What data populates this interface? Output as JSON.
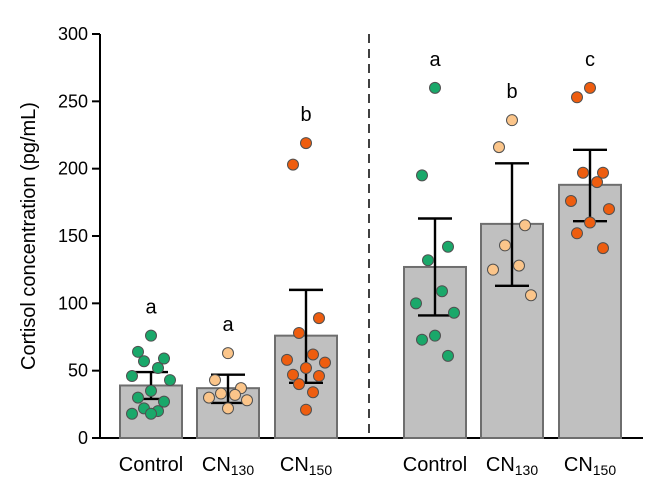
{
  "chart_data": {
    "type": "bar",
    "ylabel": "Cortisol concentration (pg/mL)",
    "ylim": [
      0,
      300
    ],
    "yticks": [
      0,
      50,
      100,
      150,
      200,
      250,
      300
    ],
    "colors": {
      "bar_fill": "#c0c0c0",
      "bar_stroke": "#6e6e6e",
      "control": "#1aa86a",
      "cn130": "#fbc58a",
      "cn150": "#ee5d0f",
      "axis": "#000000"
    },
    "groups": [
      {
        "label": "Control",
        "sub": "",
        "color_key": "control",
        "mean": 39,
        "err_low": 29,
        "err_high": 49,
        "letter": "a",
        "points": [
          76,
          64,
          59,
          57,
          52,
          46,
          43,
          35,
          30,
          27,
          22,
          20,
          18,
          18
        ]
      },
      {
        "label": "CN",
        "sub": "130",
        "color_key": "cn130",
        "mean": 37,
        "err_low": 26,
        "err_high": 47,
        "letter": "a",
        "points": [
          63,
          43,
          37,
          33,
          32,
          30,
          28,
          22
        ]
      },
      {
        "label": "CN",
        "sub": "150",
        "color_key": "cn150",
        "mean": 76,
        "err_low": 41,
        "err_high": 110,
        "letter": "b",
        "points": [
          219,
          203,
          89,
          78,
          62,
          58,
          56,
          52,
          47,
          46,
          40,
          34,
          21
        ]
      },
      {
        "label": "Control",
        "sub": "",
        "color_key": "control",
        "mean": 127,
        "err_low": 91,
        "err_high": 163,
        "letter": "a",
        "points": [
          260,
          195,
          142,
          132,
          109,
          100,
          93,
          76,
          73,
          61
        ]
      },
      {
        "label": "CN",
        "sub": "130",
        "color_key": "cn130",
        "mean": 159,
        "err_low": 113,
        "err_high": 204,
        "letter": "b",
        "points": [
          236,
          216,
          158,
          143,
          128,
          125,
          106
        ]
      },
      {
        "label": "CN",
        "sub": "150",
        "color_key": "cn150",
        "mean": 188,
        "err_low": 161,
        "err_high": 214,
        "letter": "c",
        "points": [
          260,
          253,
          197,
          197,
          190,
          176,
          170,
          160,
          152,
          141
        ]
      }
    ]
  }
}
